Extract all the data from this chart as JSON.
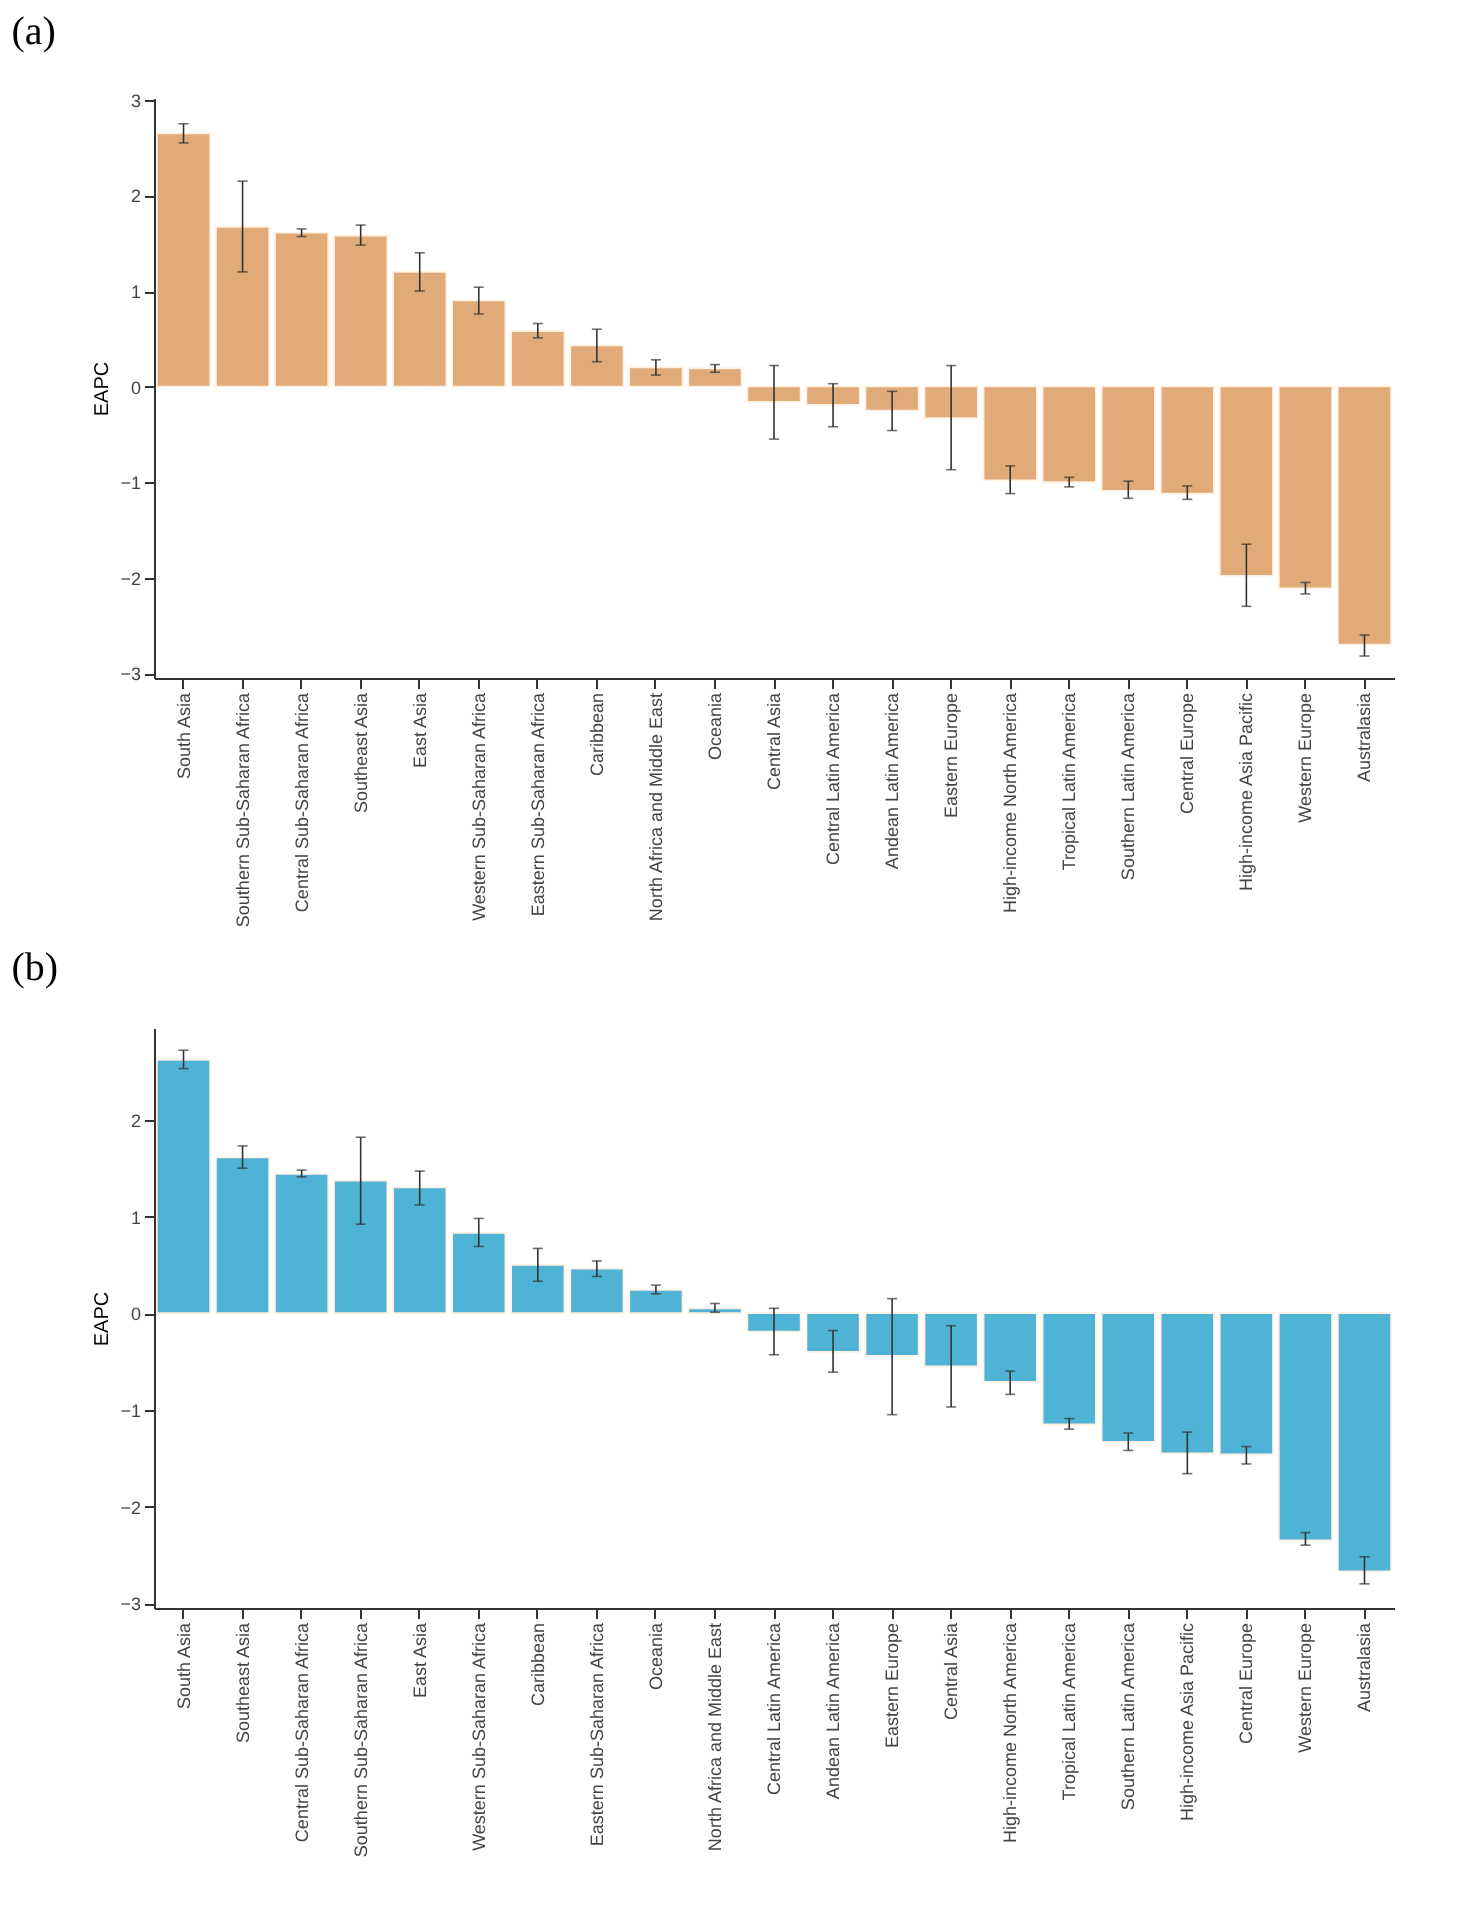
{
  "chart_data": [
    {
      "type": "bar",
      "title": "(a)",
      "ylabel": "EAPC",
      "color": "#e0ab78",
      "ylim": [
        -3.05,
        3.02
      ],
      "yticks": [
        -3,
        -2,
        -1,
        0,
        1,
        2,
        3
      ],
      "grid": false,
      "categories": [
        "South Asia",
        "Southern Sub-Saharan Africa",
        "Central Sub-Saharan Africa",
        "Southeast Asia",
        "East Asia",
        "Western Sub-Saharan Africa",
        "Eastern Sub-Saharan Africa",
        "Caribbean",
        "North Africa and Middle East",
        "Oceania",
        "Central Asia",
        "Central Latin America",
        "Andean Latin America",
        "Eastern Europe",
        "High-income North America",
        "Tropical Latin America",
        "Southern Latin America",
        "Central Europe",
        "High-income Asia Pacific",
        "Western Europe",
        "Australasia"
      ],
      "values": [
        2.65,
        1.67,
        1.61,
        1.58,
        1.2,
        0.9,
        0.58,
        0.43,
        0.2,
        0.19,
        -0.16,
        -0.19,
        -0.25,
        -0.33,
        -0.98,
        -1.0,
        -1.09,
        -1.12,
        -1.98,
        -2.11,
        -2.7
      ],
      "errors": [
        [
          2.55,
          2.75
        ],
        [
          1.2,
          2.15
        ],
        [
          1.57,
          1.65
        ],
        [
          1.48,
          1.69
        ],
        [
          1.0,
          1.4
        ],
        [
          0.76,
          1.04
        ],
        [
          0.51,
          0.66
        ],
        [
          0.26,
          0.6
        ],
        [
          0.12,
          0.28
        ],
        [
          0.15,
          0.23
        ],
        [
          -0.55,
          0.22
        ],
        [
          -0.42,
          0.03
        ],
        [
          -0.46,
          -0.05
        ],
        [
          -0.87,
          0.22
        ],
        [
          -1.12,
          -0.83
        ],
        [
          -1.05,
          -0.95
        ],
        [
          -1.17,
          -0.99
        ],
        [
          -1.18,
          -1.04
        ],
        [
          -2.3,
          -1.65
        ],
        [
          -2.17,
          -2.05
        ],
        [
          -2.82,
          -2.6
        ]
      ]
    },
    {
      "type": "bar",
      "title": "(b)",
      "ylabel": "EAPC",
      "color": "#4fb3d6",
      "ylim": [
        -3.05,
        2.95
      ],
      "yticks": [
        -3,
        -2,
        -1,
        0,
        1,
        2
      ],
      "grid": false,
      "categories": [
        "South Asia",
        "Southeast Asia",
        "Central Sub-Saharan Africa",
        "Southern Sub-Saharan Africa",
        "East Asia",
        "Western Sub-Saharan Africa",
        "Caribbean",
        "Eastern Sub-Saharan Africa",
        "Oceania",
        "North Africa and Middle East",
        "Central Latin America",
        "Andean Latin America",
        "Eastern Europe",
        "Central Asia",
        "High-income North America",
        "Tropical Latin America",
        "Southern Latin America",
        "High-income Asia Pacific",
        "Central Europe",
        "Western Europe",
        "Australasia"
      ],
      "values": [
        2.62,
        1.61,
        1.44,
        1.37,
        1.3,
        0.83,
        0.5,
        0.46,
        0.24,
        0.05,
        -0.19,
        -0.4,
        -0.44,
        -0.55,
        -0.71,
        -1.15,
        -1.33,
        -1.45,
        -1.46,
        -2.35,
        -2.67
      ],
      "errors": [
        [
          2.53,
          2.72
        ],
        [
          1.5,
          1.73
        ],
        [
          1.41,
          1.48
        ],
        [
          0.92,
          1.82
        ],
        [
          1.12,
          1.47
        ],
        [
          0.69,
          0.98
        ],
        [
          0.33,
          0.67
        ],
        [
          0.38,
          0.54
        ],
        [
          0.2,
          0.29
        ],
        [
          0.01,
          0.1
        ],
        [
          -0.43,
          0.05
        ],
        [
          -0.61,
          -0.18
        ],
        [
          -1.05,
          0.15
        ],
        [
          -0.97,
          -0.13
        ],
        [
          -0.84,
          -0.6
        ],
        [
          -1.2,
          -1.09
        ],
        [
          -1.42,
          -1.24
        ],
        [
          -1.66,
          -1.23
        ],
        [
          -1.56,
          -1.38
        ],
        [
          -2.4,
          -2.27
        ],
        [
          -2.8,
          -2.52
        ]
      ]
    }
  ]
}
